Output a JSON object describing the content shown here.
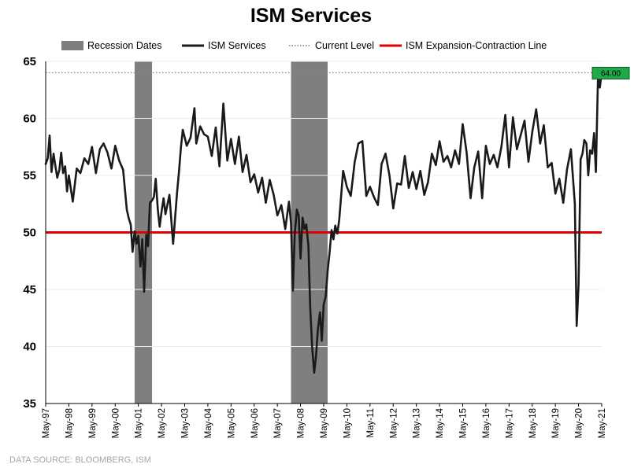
{
  "chart_data": {
    "type": "line",
    "title": "ISM Services",
    "source": "DATA SOURCE: BLOOMBERG, ISM",
    "ylim": [
      35,
      65
    ],
    "yticks": [
      35,
      40,
      45,
      50,
      55,
      60,
      65
    ],
    "ytick_labels": [
      "35",
      "40",
      "45",
      "50",
      "55",
      "60",
      "65"
    ],
    "xlim": [
      1997.33,
      2021.33
    ],
    "x_ticks": [
      1997.33,
      1998.33,
      1999.33,
      2000.33,
      2001.33,
      2002.33,
      2003.33,
      2004.33,
      2005.33,
      2006.33,
      2007.33,
      2008.33,
      2009.33,
      2010.33,
      2011.33,
      2012.33,
      2013.33,
      2014.33,
      2015.33,
      2016.33,
      2017.33,
      2018.33,
      2019.33,
      2020.33,
      2021.33
    ],
    "xtick_labels": [
      "May-97",
      "May-98",
      "May-99",
      "May-00",
      "May-01",
      "May-02",
      "May-03",
      "May-04",
      "May-05",
      "May-06",
      "May-07",
      "May-08",
      "May-09",
      "May-10",
      "May-11",
      "May-12",
      "May-13",
      "May-14",
      "May-15",
      "May-16",
      "May-17",
      "May-18",
      "May-19",
      "May-20",
      "May-21"
    ],
    "legend": [
      {
        "label": "Recession Dates",
        "kind": "bar",
        "color": "#7f7f7f"
      },
      {
        "label": "ISM Services",
        "kind": "line",
        "color": "#1a1a1a"
      },
      {
        "label": "Current Level",
        "kind": "dotted",
        "color": "#7f7f7f"
      },
      {
        "label": "ISM Expansion-Contraction Line",
        "kind": "line",
        "color": "#e00000"
      }
    ],
    "recessions": [
      {
        "start": 2001.17,
        "end": 2001.92
      },
      {
        "start": 2007.92,
        "end": 2009.5
      }
    ],
    "current_level": 64.0,
    "current_level_label": "64.00",
    "expansion_line": 50,
    "series": [
      {
        "name": "ISM Services",
        "color": "#1a1a1a",
        "x": [
          1997.33,
          1997.42,
          1997.5,
          1997.58,
          1997.67,
          1997.75,
          1997.83,
          1997.92,
          1998.0,
          1998.08,
          1998.17,
          1998.25,
          1998.33,
          1998.5,
          1998.67,
          1998.83,
          1999.0,
          1999.17,
          1999.33,
          1999.5,
          1999.67,
          1999.83,
          2000.0,
          2000.17,
          2000.33,
          2000.5,
          2000.67,
          2000.83,
          2000.92,
          2001.0,
          2001.08,
          2001.17,
          2001.25,
          2001.33,
          2001.42,
          2001.5,
          2001.58,
          2001.67,
          2001.75,
          2001.83,
          2001.92,
          2002.0,
          2002.08,
          2002.17,
          2002.25,
          2002.33,
          2002.42,
          2002.5,
          2002.67,
          2002.83,
          2003.0,
          2003.08,
          2003.17,
          2003.25,
          2003.42,
          2003.58,
          2003.75,
          2003.83,
          2004.0,
          2004.17,
          2004.33,
          2004.5,
          2004.67,
          2004.83,
          2005.0,
          2005.17,
          2005.33,
          2005.5,
          2005.67,
          2005.83,
          2006.0,
          2006.17,
          2006.33,
          2006.5,
          2006.67,
          2006.83,
          2007.0,
          2007.17,
          2007.33,
          2007.5,
          2007.67,
          2007.83,
          2007.92,
          2008.0,
          2008.08,
          2008.17,
          2008.25,
          2008.33,
          2008.42,
          2008.5,
          2008.58,
          2008.67,
          2008.75,
          2008.83,
          2008.92,
          2009.0,
          2009.08,
          2009.17,
          2009.25,
          2009.33,
          2009.42,
          2009.5,
          2009.58,
          2009.67,
          2009.75,
          2009.83,
          2009.92,
          2010.0,
          2010.17,
          2010.33,
          2010.5,
          2010.67,
          2010.83,
          2011.0,
          2011.17,
          2011.33,
          2011.5,
          2011.67,
          2011.83,
          2012.0,
          2012.17,
          2012.33,
          2012.5,
          2012.67,
          2012.83,
          2013.0,
          2013.17,
          2013.33,
          2013.5,
          2013.67,
          2013.83,
          2014.0,
          2014.17,
          2014.33,
          2014.5,
          2014.67,
          2014.83,
          2015.0,
          2015.17,
          2015.33,
          2015.5,
          2015.67,
          2015.83,
          2016.0,
          2016.17,
          2016.33,
          2016.5,
          2016.67,
          2016.83,
          2017.0,
          2017.17,
          2017.33,
          2017.5,
          2017.67,
          2017.83,
          2018.0,
          2018.17,
          2018.33,
          2018.5,
          2018.67,
          2018.83,
          2019.0,
          2019.17,
          2019.33,
          2019.5,
          2019.67,
          2019.83,
          2020.0,
          2020.17,
          2020.25,
          2020.33,
          2020.42,
          2020.5,
          2020.58,
          2020.67,
          2020.75,
          2020.83,
          2020.92,
          2021.0,
          2021.08,
          2021.17,
          2021.25,
          2021.33
        ],
        "values": [
          56.0,
          56.5,
          58.5,
          55.3,
          56.9,
          55.8,
          54.8,
          55.5,
          57.0,
          55.2,
          55.8,
          53.6,
          55.0,
          52.7,
          55.6,
          55.2,
          56.5,
          56.0,
          57.5,
          55.2,
          57.3,
          57.8,
          57.0,
          55.6,
          57.6,
          56.3,
          55.5,
          52.0,
          51.2,
          50.7,
          48.3,
          50.1,
          49.0,
          49.7,
          47.0,
          49.4,
          44.8,
          49.8,
          48.8,
          52.6,
          52.8,
          53.1,
          54.7,
          52.0,
          50.5,
          51.8,
          53.0,
          51.6,
          53.3,
          49.0,
          53.5,
          55.2,
          57.5,
          59.0,
          57.6,
          58.3,
          60.9,
          57.8,
          59.3,
          58.6,
          58.4,
          56.7,
          59.2,
          55.8,
          61.3,
          56.3,
          58.2,
          56.0,
          58.4,
          55.3,
          56.8,
          54.4,
          55.1,
          53.5,
          54.8,
          52.6,
          54.6,
          53.3,
          51.5,
          52.4,
          50.3,
          52.7,
          50.8,
          44.9,
          49.8,
          52.0,
          51.5,
          47.7,
          51.3,
          50.3,
          50.7,
          48.8,
          43.4,
          40.0,
          37.7,
          39.2,
          41.5,
          43.0,
          40.5,
          43.7,
          44.4,
          46.6,
          48.2,
          50.2,
          49.4,
          50.6,
          49.9,
          51.1,
          55.4,
          54.0,
          53.2,
          56.2,
          57.8,
          58.0,
          53.2,
          54.0,
          53.1,
          52.4,
          56.0,
          56.9,
          55.0,
          52.1,
          54.3,
          54.2,
          56.7,
          53.9,
          55.3,
          53.8,
          55.4,
          53.3,
          54.4,
          56.9,
          55.9,
          58.0,
          56.2,
          56.7,
          55.7,
          57.2,
          56.0,
          59.5,
          57.0,
          53.0,
          55.7,
          57.1,
          53.0,
          57.6,
          56.0,
          56.8,
          55.7,
          57.5,
          60.3,
          55.7,
          60.1,
          57.3,
          58.5,
          59.8,
          56.2,
          58.8,
          60.8,
          57.8,
          59.4,
          55.7,
          56.1,
          53.4,
          54.7,
          52.6,
          55.5,
          57.3,
          52.5,
          41.8,
          45.4,
          56.4,
          56.9,
          58.1,
          57.8,
          55.0,
          57.2,
          56.9,
          58.7,
          55.3,
          63.7,
          62.7,
          64.0
        ]
      }
    ]
  }
}
